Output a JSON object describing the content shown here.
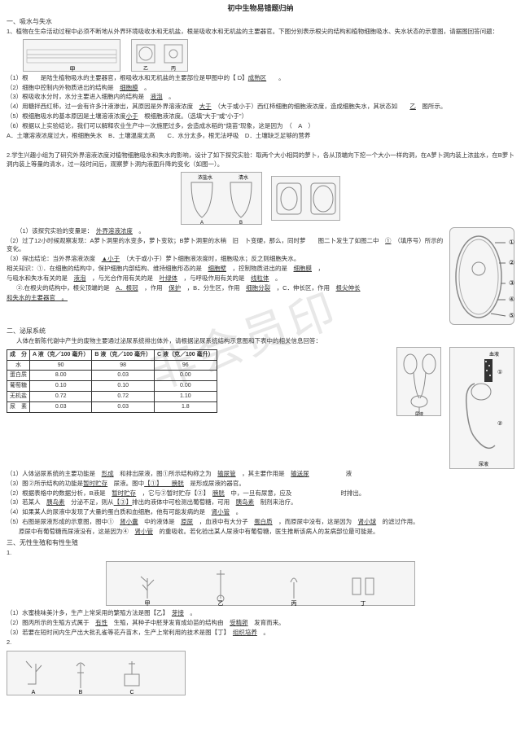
{
  "title": "初中生物易错题归纳",
  "s1": {
    "head": "一、吸水与失水",
    "q1": "1、植物在生命活动过程中必须不断地从外界环境吸收水和无机盐，根是吸收水和无机盐的主要器官。下图分别表示根尖的结构和植物细胞吸水、失水状态的示意图，请据图回答问题：",
    "a1_pre": "（1）根　　是陆生植物吸水的主要器官，根吸收水和无机盐的主要部位是甲图中的【 D】",
    "a1_u": "成熟区",
    "a1_post": "　　。",
    "a2_pre": "（2）细胞中控制内外物质进出的结构是　",
    "a2_u": "细胞膜",
    "a2_post": "　。",
    "a3_pre": "（3）根吸收水分时，水分主要进入细胞内的结构是　",
    "a3_u": "液泡",
    "a3_post": "　。",
    "a4_pre": "（4）用糖拌西红柿，过一会有许多汁液渗出，其原因是外界溶液浓度　",
    "a4_u": "大于",
    "a4_mid": "　（大于或小于）西红柿细胞的细胞液浓度，造成细胞失水，其状态如　　",
    "a4_u2": "乙",
    "a4_post": "　图所示。",
    "a5_pre": "（5）根细胞吸水的基本原因是土壤溶液浓度",
    "a5_u": "小于",
    "a5_mid": "　根细胞液浓度。（选填\"大于\"或\"小于\"）",
    "a6_pre": "（6）根据以上实验结论，我们可以解释农业生产中一次施肥过多，会造成水稻的\"烧苗\"现象，这是因为　（　A　）",
    "a6_opts": "A．土壤溶液浓度过大，根细胞失水　B．土壤温度太高　　C．水分太多，根无法呼吸　D．土壤缺乏足够的营养"
  },
  "s2": {
    "q": "2.学生兴趣小组为了研究外界溶液浓度对植物细胞吸水和失水的影响，设计了如下探究实验：取两个大小相同的萝卜，各从顶端向下挖一个大小一样的洞，在A萝卜洞内装上浓盐水，在B萝卜洞内装上等量的清水，过一段时间后，观察萝卜洞内液面升降的变化（如图一）。",
    "lbl_salt": "浓盐水",
    "lbl_water": "清水",
    "a1_pre": "（1）该探究实验的变量是：　",
    "a1_u": "外界溶液浓度",
    "a1_post": "　。",
    "a2_pre": "（2）过了12小时候观察发现：A萝卜洞里的水变多，萝卜变软；B萝卜洞里的水稍　旧　卜变硬，那么，同时萝　　图二卜发生了如图二中　",
    "a2_u": "①",
    "a2_post": "　（填序号）所示的变化。",
    "a3_pre": "（3）得出结论：当外界溶液浓度　",
    "a3_u": "▲小于",
    "a3_post": "　（大于或小于）萝卜细胞液浓度时，细胞吸水；反之则细胞失水。",
    "rel_pre": "相关知识：①．在细胞的结构中，保护细胞内部结构、维持细胞形态的是　",
    "rel_u1": "细胞壁",
    "rel_mid1": "　，控制物质进出的是　",
    "rel_u2": "细胞膜",
    "rel_post1": "　，",
    "rel2_pre": "与吸水和失水有关的是　",
    "rel2_u1": "液泡",
    "rel2_mid1": "　，与光合作用有关的是　",
    "rel2_u2": "叶绿体",
    "rel2_mid2": "　，与呼吸作用有关的是　",
    "rel2_u3": "线粒体",
    "rel2_post": "　。",
    "rel3_pre": "②.在根尖的结构中，根尖顶端的是　",
    "rel3_u1": "A．根冠",
    "rel3_mid1": "　，作用　",
    "rel3_u2": "保护",
    "rel3_mid2": "　，B．分生区，作用　",
    "rel3_u3": "细胞分裂",
    "rel3_mid3": "　，C．伸长区，作用　",
    "rel3_u4": "根尖伸长",
    "rel3_post": "　",
    "rel4": "和失水的主要器官　。",
    "c_labels": [
      "①",
      "②",
      "③",
      "④",
      "⑤"
    ]
  },
  "s3": {
    "head": "二、泌尿系统",
    "intro": "人体在新陈代谢中产生的废物主要通过泌尿系统排出体外，请根据泌尿系统结构示意图和下表中的相关信息回答：",
    "table": {
      "cols": [
        "成　分",
        "A 液（克／100 毫升）",
        "B 液（克／100 毫升）",
        "C 液（克／100 毫升）"
      ],
      "rows": [
        [
          "水",
          "90",
          "98",
          "96"
        ],
        [
          "蛋白质",
          "8.00",
          "0.03",
          "0.00"
        ],
        [
          "葡萄糖",
          "0.10",
          "0.10",
          "0.00"
        ],
        [
          "无机盐",
          "0.72",
          "0.72",
          "1.10"
        ],
        [
          "尿　素",
          "0.03",
          "0.03",
          "1.8"
        ]
      ]
    },
    "blood_lbl": "血液",
    "urine_lbl": "尿液",
    "a1_pre": "（1）人体泌尿系统的主要功能是　",
    "a1_u1": "形成",
    "a1_mid": "　和排出尿液，图①所示结构称之为　",
    "a1_u2": "输尿管",
    "a1_mid2": "　，其主要作用是　",
    "a1_u3": "输送尿",
    "a1_post": "　　　　　　液",
    "a2_pre": "（3）图②所示结构的功能是",
    "a2_u1": "暂时贮存",
    "a2_mid1": "　尿液。图中",
    "a2_u2": "【①】　　膀胱",
    "a2_post": "　是形成尿液的器官。",
    "a3_pre": "（2）根据表格中的数据分析，B液是　",
    "a3_u1": "暂时贮存",
    "a3_mid": "　，它与②暂时贮存【②】　",
    "a3_u2": "膀胱",
    "a3_post": "　中，一旦有尿意，应及　　　　　　　　时排出。",
    "a4_pre": "（3）若某人　",
    "a4_u1": "胰岛素",
    "a4_mid1": "　分泌不足，则从",
    "a4_u2": "【③】",
    "a4_mid2": "排出的液体中可检测出葡萄糖，可用　",
    "a4_u3": "胰岛素",
    "a4_post": "　制剂来治疗。",
    "a5_pre": "（4）如果某人的尿液中发现了大量的蛋白质和血细胞，他有可能发病的是　",
    "a5_u": "肾小管",
    "a5_post": "　。",
    "a6_pre": "（5）右图是尿液形成的示意图，图中①　",
    "a6_u1": "肾小囊",
    "a6_mid1": "　中的液体是　",
    "a6_u2": "原尿",
    "a6_mid2": "　，血液中有大分子　",
    "a6_u3": "蛋白质",
    "a6_mid3": "　，而原尿中没有，这是因为　",
    "a6_u4": "肾小球",
    "a6_post": "　的滤过作用。",
    "a7_pre": "　　原尿中有葡萄糖而尿液没有，这是因为④　",
    "a7_u": "肾小管",
    "a7_post": "　的重吸收。若化验出某人尿液中有葡萄糖，医生推断该病人的发病部位最可能是。"
  },
  "s4": {
    "head": "三、无性生殖和有性生殖",
    "q1": "1.",
    "a1_pre": "（1）水蜜桃味美汁多，生产上常采用的繁殖方法是图【乙】　",
    "a1_u": "芽接",
    "a1_post": "　。",
    "a2_pre": "（2）图丙所示的生殖方式属于　",
    "a2_u1": "有性",
    "a2_mid1": "　生殖，其种子中胚芽发育成幼苗的结构由　",
    "a2_u2": "受精卵",
    "a2_post": "　发育而来。",
    "a3_pre": "（3）若要在短时间内生产出大批孔雀等花卉苗木，生产上常利用的技术是图【丁】　",
    "a3_u": "组织培养",
    "a3_post": "　。",
    "q2": "2."
  }
}
